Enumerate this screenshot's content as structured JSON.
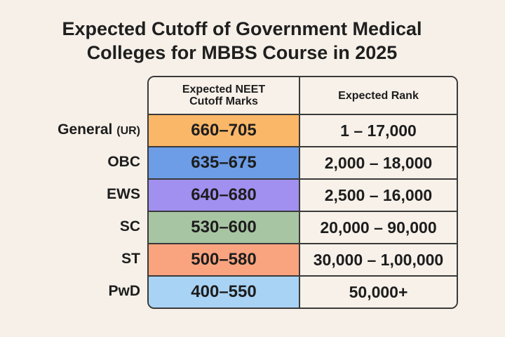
{
  "title": [
    "Expected Cutoff of Government Medical",
    "Colleges for MBBS Course in 2025"
  ],
  "chart_data": {
    "type": "table",
    "title": "Expected Cutoff of Government Medical Colleges for MBBS Course in 2025",
    "columns": [
      "Expected NEET Cutoff Marks",
      "Expected Rank"
    ],
    "rows": [
      {
        "category": "General",
        "category_suffix": "(UR)",
        "marks": "660–705",
        "rank": "1 – 17,000",
        "color": "#fbb768"
      },
      {
        "category": "OBC",
        "category_suffix": "",
        "marks": "635–675",
        "rank": "2,000 – 18,000",
        "color": "#6d9de6"
      },
      {
        "category": "EWS",
        "category_suffix": "",
        "marks": "640–680",
        "rank": "2,500 – 16,000",
        "color": "#a290f0"
      },
      {
        "category": "SC",
        "category_suffix": "",
        "marks": "530–600",
        "rank": "20,000 – 90,000",
        "color": "#a8c5a3"
      },
      {
        "category": "ST",
        "category_suffix": "",
        "marks": "500–580",
        "rank": "30,000 – 1,00,000",
        "color": "#f9a47f"
      },
      {
        "category": "PwD",
        "category_suffix": "",
        "marks": "400–550",
        "rank": "50,000+",
        "color": "#a8d3f5"
      }
    ]
  }
}
